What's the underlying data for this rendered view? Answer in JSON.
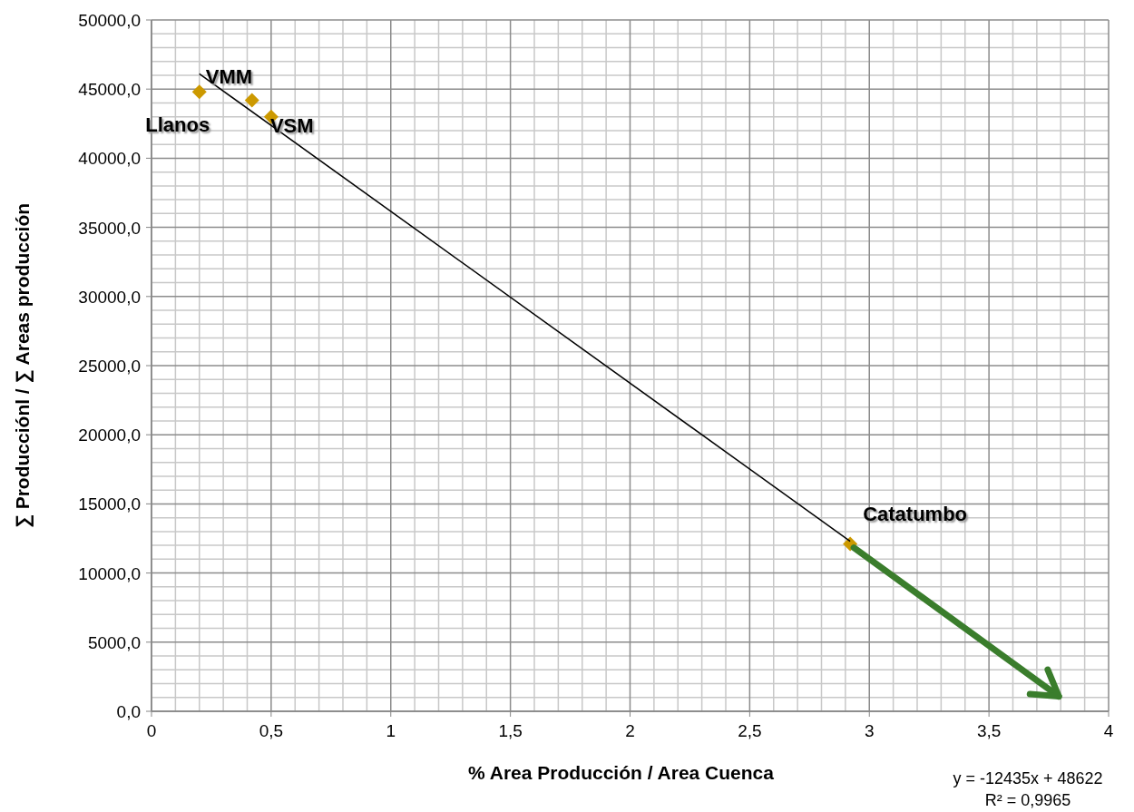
{
  "chart_data": {
    "type": "scatter",
    "xlabel": "% Area Producción / Area Cuenca",
    "ylabel": "∑ Producciónl / ∑ Areas producción",
    "xlim": [
      0,
      4
    ],
    "ylim": [
      0,
      50000
    ],
    "xticks": [
      0,
      {
        "value": 0.5,
        "label": "0,5"
      },
      1,
      {
        "value": 1.5,
        "label": "1,5"
      },
      2,
      {
        "value": 2.5,
        "label": "2,5"
      },
      3,
      {
        "value": 3.5,
        "label": "3,5"
      },
      4
    ],
    "yticks": [
      {
        "value": 0,
        "label": "0,0"
      },
      {
        "value": 5000,
        "label": "5000,0"
      },
      {
        "value": 10000,
        "label": "10000,0"
      },
      {
        "value": 15000,
        "label": "15000,0"
      },
      {
        "value": 20000,
        "label": "20000,0"
      },
      {
        "value": 25000,
        "label": "25000,0"
      },
      {
        "value": 30000,
        "label": "30000,0"
      },
      {
        "value": 35000,
        "label": "35000,0"
      },
      {
        "value": 40000,
        "label": "40000,0"
      },
      {
        "value": 45000,
        "label": "45000,0"
      },
      {
        "value": 50000,
        "label": "50000,0"
      }
    ],
    "grid": true,
    "series": [
      {
        "type": "scatter",
        "color": "#cc9900",
        "marker": "diamond",
        "x": [
          0.2,
          0.42,
          0.5,
          2.92
        ],
        "values": [
          44800,
          44200,
          43000,
          12100
        ]
      },
      {
        "type": "line",
        "color": "#000000",
        "marker": "none",
        "x": [
          0.2,
          2.92
        ],
        "values": [
          46100,
          12300
        ]
      }
    ],
    "annotations": [
      {
        "text": "Llanos",
        "x": 0.2,
        "y": 44800
      },
      {
        "text": "VMM",
        "x": 0.42,
        "y": 44200
      },
      {
        "text": "VSM",
        "x": 0.5,
        "y": 43000
      },
      {
        "text": "Catatumbo",
        "x": 2.92,
        "y": 12100
      },
      "y = -12435x + 48622",
      "R² = 0,9965"
    ]
  }
}
